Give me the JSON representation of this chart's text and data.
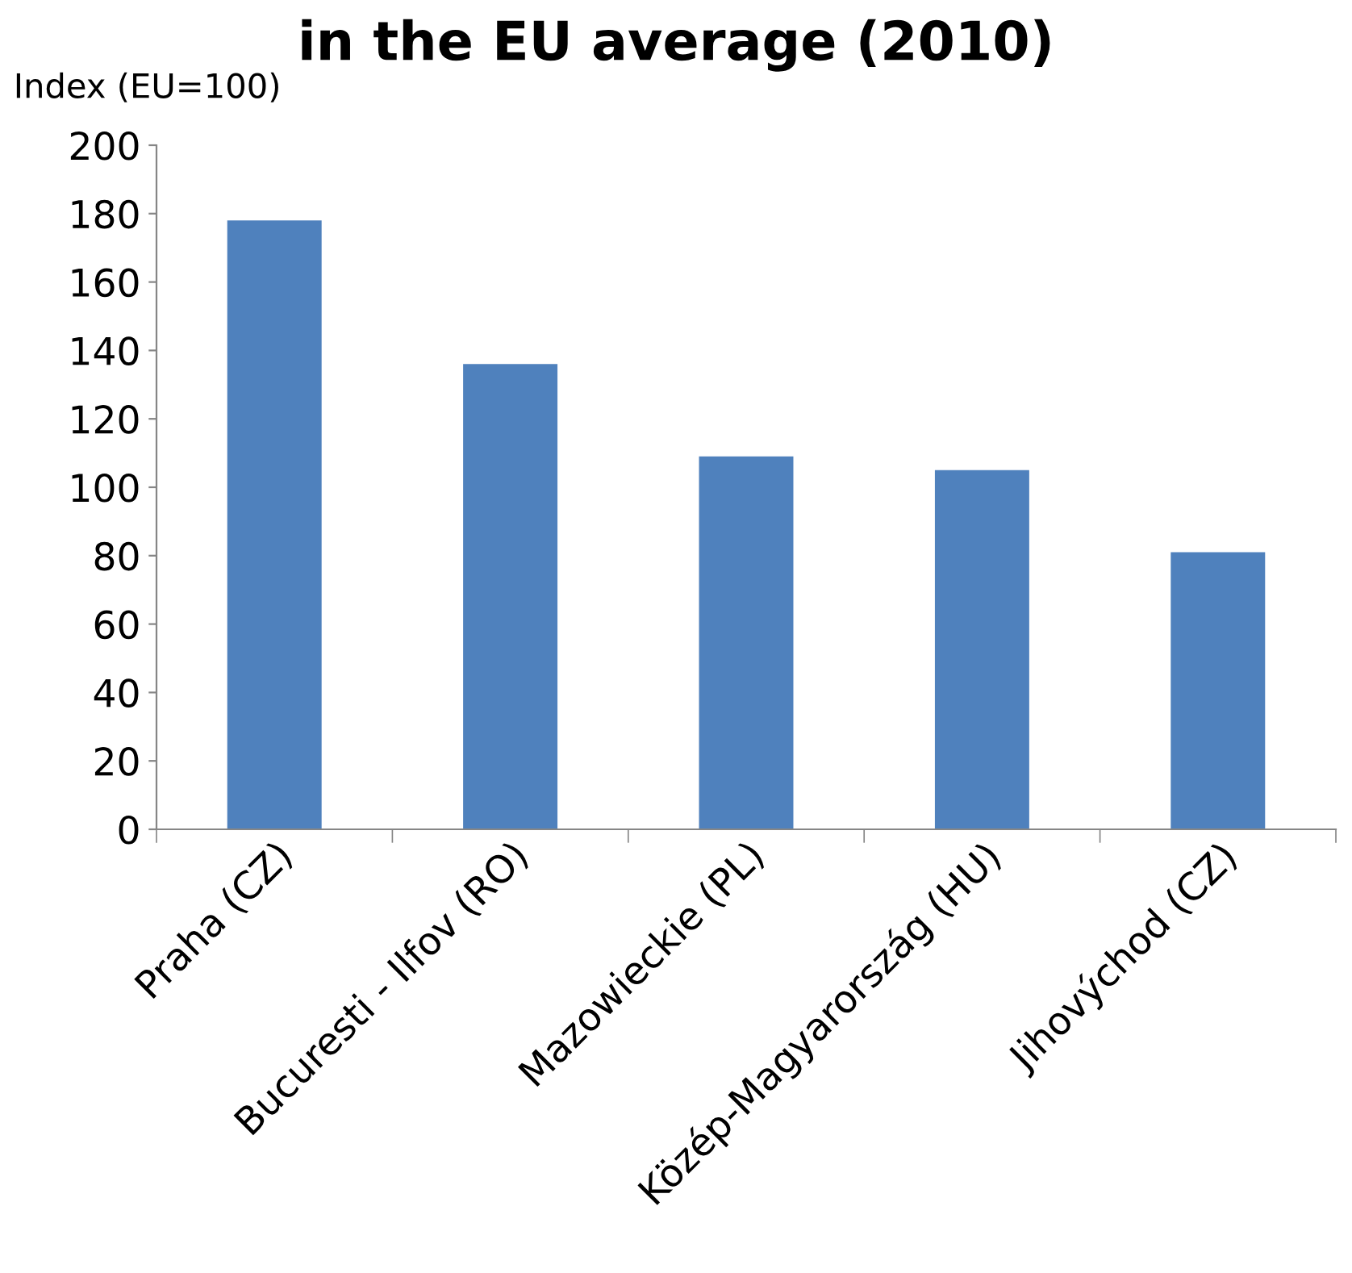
{
  "chart_data": {
    "type": "bar",
    "title": "in the EU average (2010)",
    "ylabel": "Index (EU=100)",
    "categories": [
      "Praha (CZ)",
      "Bucuresti - Ilfov (RO)",
      "Mazowieckie (PL)",
      "Közép-Magyarország (HU)",
      "Jihovýchod (CZ)"
    ],
    "values": [
      178,
      136,
      109,
      105,
      81
    ],
    "color": "#4f81bd",
    "ylim": [
      0,
      200
    ],
    "yticks": [
      0,
      20,
      40,
      60,
      80,
      100,
      120,
      140,
      160,
      180,
      200
    ],
    "grid": false,
    "legend": false
  }
}
